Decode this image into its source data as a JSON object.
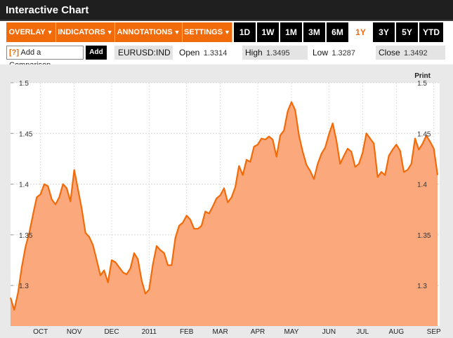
{
  "window": {
    "title": "Interactive Chart"
  },
  "toolbar": {
    "menus": [
      {
        "label": "OVERLAY",
        "arrow": "▼"
      },
      {
        "label": "INDICATORS",
        "arrow": "▼"
      },
      {
        "label": "ANNOTATIONS",
        "arrow": "▼"
      },
      {
        "label": "SETTINGS",
        "arrow": "▼"
      }
    ],
    "ranges": [
      "1D",
      "1W",
      "1M",
      "3M",
      "6M",
      "1Y",
      "3Y",
      "5Y",
      "YTD"
    ],
    "active_range": "1Y"
  },
  "infobar": {
    "compare_placeholder": "Add a Comparison",
    "compare_help": "[?]",
    "add_label": "Add",
    "ticker": "EURUSD:IND",
    "open_label": "Open",
    "open_value": "1.3314",
    "high_label": "High",
    "high_value": "1.3495",
    "low_label": "Low",
    "low_value": "1.3287",
    "close_label": "Close",
    "close_value": "1.3492"
  },
  "print_label": "Print",
  "colors": {
    "accent": "#f26b0b",
    "line": "#f26b0b",
    "fill": "#fba97c",
    "plot_bg": "#ffffff",
    "frame_bg": "#e9e9e9"
  },
  "chart_data": {
    "type": "area",
    "title": "",
    "xlabel": "",
    "ylabel": "",
    "ylim": [
      1.26,
      1.5
    ],
    "yticks": [
      1.3,
      1.35,
      1.4,
      1.45,
      1.5
    ],
    "ytick_labels": [
      "1.3",
      "1.35",
      "1.4",
      "1.45",
      "1.5"
    ],
    "grid": true,
    "x_ticks": [
      {
        "label": "OCT",
        "i": 8
      },
      {
        "label": "NOV",
        "i": 17
      },
      {
        "label": "DEC",
        "i": 27
      },
      {
        "label": "2011",
        "i": 37
      },
      {
        "label": "FEB",
        "i": 47
      },
      {
        "label": "MAR",
        "i": 56
      },
      {
        "label": "APR",
        "i": 66
      },
      {
        "label": "MAY",
        "i": 75
      },
      {
        "label": "JUN",
        "i": 85
      },
      {
        "label": "JUL",
        "i": 94
      },
      {
        "label": "AUG",
        "i": 103
      },
      {
        "label": "SEP",
        "i": 113
      }
    ],
    "series": [
      {
        "values": [
          1.288,
          1.276,
          1.293,
          1.318,
          1.338,
          1.352,
          1.37,
          1.387,
          1.39,
          1.4,
          1.398,
          1.385,
          1.38,
          1.387,
          1.4,
          1.396,
          1.383,
          1.414,
          1.395,
          1.376,
          1.352,
          1.348,
          1.34,
          1.325,
          1.31,
          1.315,
          1.303,
          1.325,
          1.323,
          1.318,
          1.313,
          1.311,
          1.317,
          1.332,
          1.326,
          1.305,
          1.292,
          1.296,
          1.321,
          1.339,
          1.335,
          1.332,
          1.32,
          1.32,
          1.347,
          1.359,
          1.362,
          1.369,
          1.365,
          1.356,
          1.356,
          1.359,
          1.373,
          1.371,
          1.378,
          1.386,
          1.389,
          1.396,
          1.382,
          1.387,
          1.397,
          1.418,
          1.409,
          1.424,
          1.422,
          1.437,
          1.439,
          1.445,
          1.444,
          1.447,
          1.444,
          1.427,
          1.448,
          1.453,
          1.472,
          1.481,
          1.473,
          1.448,
          1.432,
          1.419,
          1.413,
          1.405,
          1.42,
          1.43,
          1.436,
          1.449,
          1.46,
          1.443,
          1.42,
          1.428,
          1.435,
          1.432,
          1.417,
          1.42,
          1.431,
          1.45,
          1.445,
          1.44,
          1.407,
          1.412,
          1.409,
          1.428,
          1.434,
          1.439,
          1.433,
          1.412,
          1.414,
          1.42,
          1.445,
          1.434,
          1.44,
          1.448,
          1.442,
          1.435,
          1.409
        ]
      }
    ]
  }
}
